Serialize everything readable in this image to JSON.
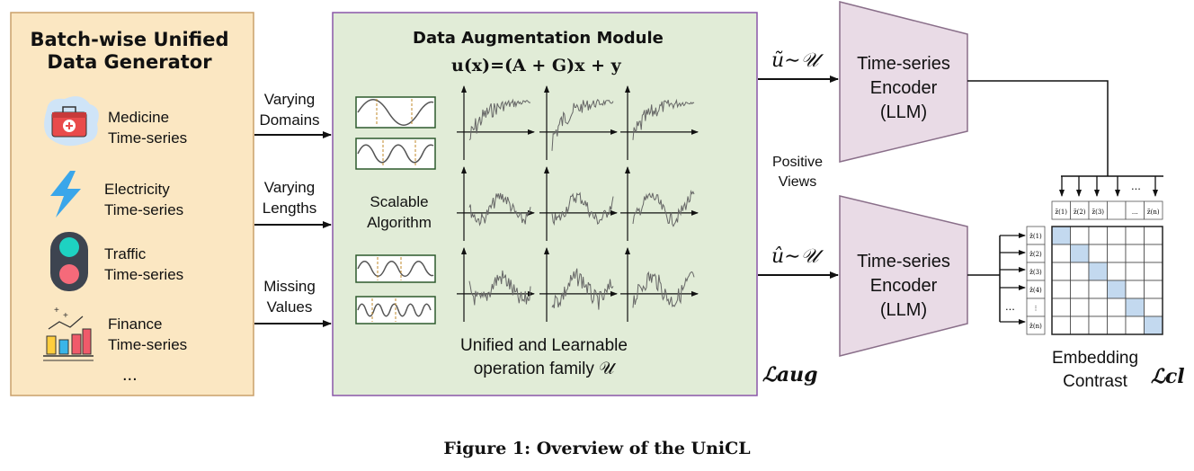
{
  "generator": {
    "title_line1": "Batch-wise Unified",
    "title_line2": "Data Generator",
    "sources": [
      {
        "line1": "Medicine",
        "line2": "Time-series",
        "icon": "medicine-box-icon"
      },
      {
        "line1": "Electricity",
        "line2": "Time-series",
        "icon": "lightning-icon"
      },
      {
        "line1": "Traffic",
        "line2": "Time-series",
        "icon": "traffic-light-icon"
      },
      {
        "line1": "Finance",
        "line2": "Time-series",
        "icon": "bar-chart-icon"
      }
    ],
    "ellipsis": "..."
  },
  "flows": [
    {
      "line1": "Varying",
      "line2": "Domains"
    },
    {
      "line1": "Varying",
      "line2": "Lengths"
    },
    {
      "line1": "Missing",
      "line2": "Values"
    }
  ],
  "module": {
    "title": "Data Augmentation Module",
    "formula": "u(x)=(A + G)x + y",
    "algo_line1": "Scalable",
    "algo_line2": "Algorithm",
    "family_line1": "Unified and Learnable",
    "family_line2": "operation family 𝒰"
  },
  "loss_aug": "ℒaug",
  "views": {
    "top": "ũ∼𝒰",
    "bottom": "û∼𝒰",
    "positive_line1": "Positive",
    "positive_line2": "Views"
  },
  "encoders": [
    {
      "line1": "Time-series",
      "line2": "Encoder",
      "line3": "(LLM)"
    },
    {
      "line1": "Time-series",
      "line2": "Encoder",
      "line3": "(LLM)"
    }
  ],
  "matrix": {
    "col_labels": [
      "z̃(1)",
      "z̃(2)",
      "z̃(3)",
      "",
      "...",
      "z̃(n)"
    ],
    "row_labels": [
      "ẑ(1)",
      "ẑ(2)",
      "ẑ(3)",
      "ẑ(4)",
      "⋮",
      "ẑ(n)"
    ],
    "top_ellipsis": "...",
    "side_ellipsis": "...",
    "contrast_line1": "Embedding",
    "contrast_line2": "Contrast"
  },
  "loss_cl": "ℒcl",
  "caption": "Figure 1: Overview of the UniCL",
  "colors": {
    "generator_fill": "#fbe7c2",
    "generator_border": "#caa06a",
    "module_fill": "#e1ecd7",
    "module_border": "#8a57a8",
    "encoder_fill": "#e9dbe6",
    "encoder_border": "#8a6f8a",
    "diag_cell": "#c3d9ef"
  }
}
